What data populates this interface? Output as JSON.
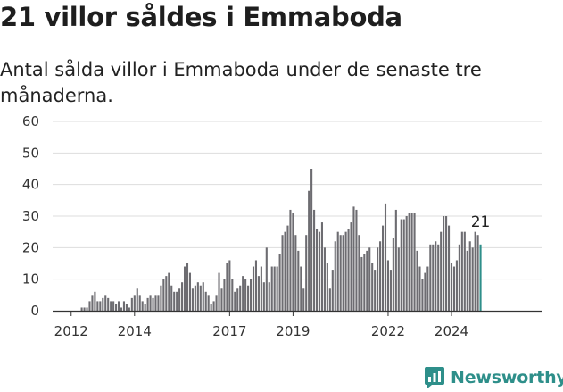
{
  "title": "21 villor såldes i Emmaboda",
  "subtitle": "Antal sålda villor i Emmaboda under de senaste tre månaderna.",
  "brand": "Newsworthy",
  "colors": {
    "bar": "#6d6c71",
    "highlight": "#2e8f8a",
    "grid": "#dddddd",
    "axis": "#333333",
    "text": "#333333"
  },
  "chart_data": {
    "type": "bar",
    "ylim": [
      0,
      60
    ],
    "yticks": [
      0,
      10,
      20,
      30,
      40,
      50,
      60
    ],
    "x_tick_labels": [
      {
        "label": "2012",
        "index": 6
      },
      {
        "label": "2014",
        "index": 30
      },
      {
        "label": "2017",
        "index": 66
      },
      {
        "label": "2019",
        "index": 90
      },
      {
        "label": "2022",
        "index": 126
      },
      {
        "label": "2024",
        "index": 150
      }
    ],
    "grid": true,
    "highlight_last": true,
    "last_value_label": "21",
    "values": [
      0,
      0,
      0,
      0,
      0,
      0,
      0,
      0,
      0,
      0,
      1,
      1,
      1,
      3,
      5,
      6,
      3,
      3,
      4,
      5,
      4,
      3,
      3,
      2,
      3,
      1,
      3,
      2,
      1,
      4,
      5,
      7,
      5,
      3,
      2,
      4,
      5,
      4,
      5,
      5,
      8,
      10,
      11,
      12,
      8,
      6,
      6,
      7,
      9,
      14,
      15,
      12,
      7,
      8,
      9,
      8,
      9,
      6,
      5,
      2,
      3,
      5,
      12,
      7,
      10,
      15,
      16,
      10,
      6,
      7,
      8,
      11,
      10,
      8,
      10,
      14,
      16,
      11,
      14,
      9,
      20,
      9,
      14,
      14,
      14,
      18,
      24,
      25,
      27,
      32,
      31,
      24,
      19,
      14,
      7,
      24,
      38,
      45,
      32,
      26,
      25,
      28,
      20,
      15,
      7,
      13,
      22,
      25,
      24,
      24,
      25,
      26,
      28,
      33,
      32,
      24,
      17,
      18,
      19,
      20,
      15,
      13,
      20,
      22,
      27,
      34,
      16,
      13,
      23,
      32,
      20,
      29,
      29,
      30,
      31,
      31,
      31,
      19,
      14,
      10,
      12,
      14,
      21,
      21,
      22,
      21,
      25,
      30,
      30,
      27,
      15,
      14,
      16,
      21,
      25,
      25,
      19,
      22,
      20,
      25,
      24,
      21
    ]
  }
}
